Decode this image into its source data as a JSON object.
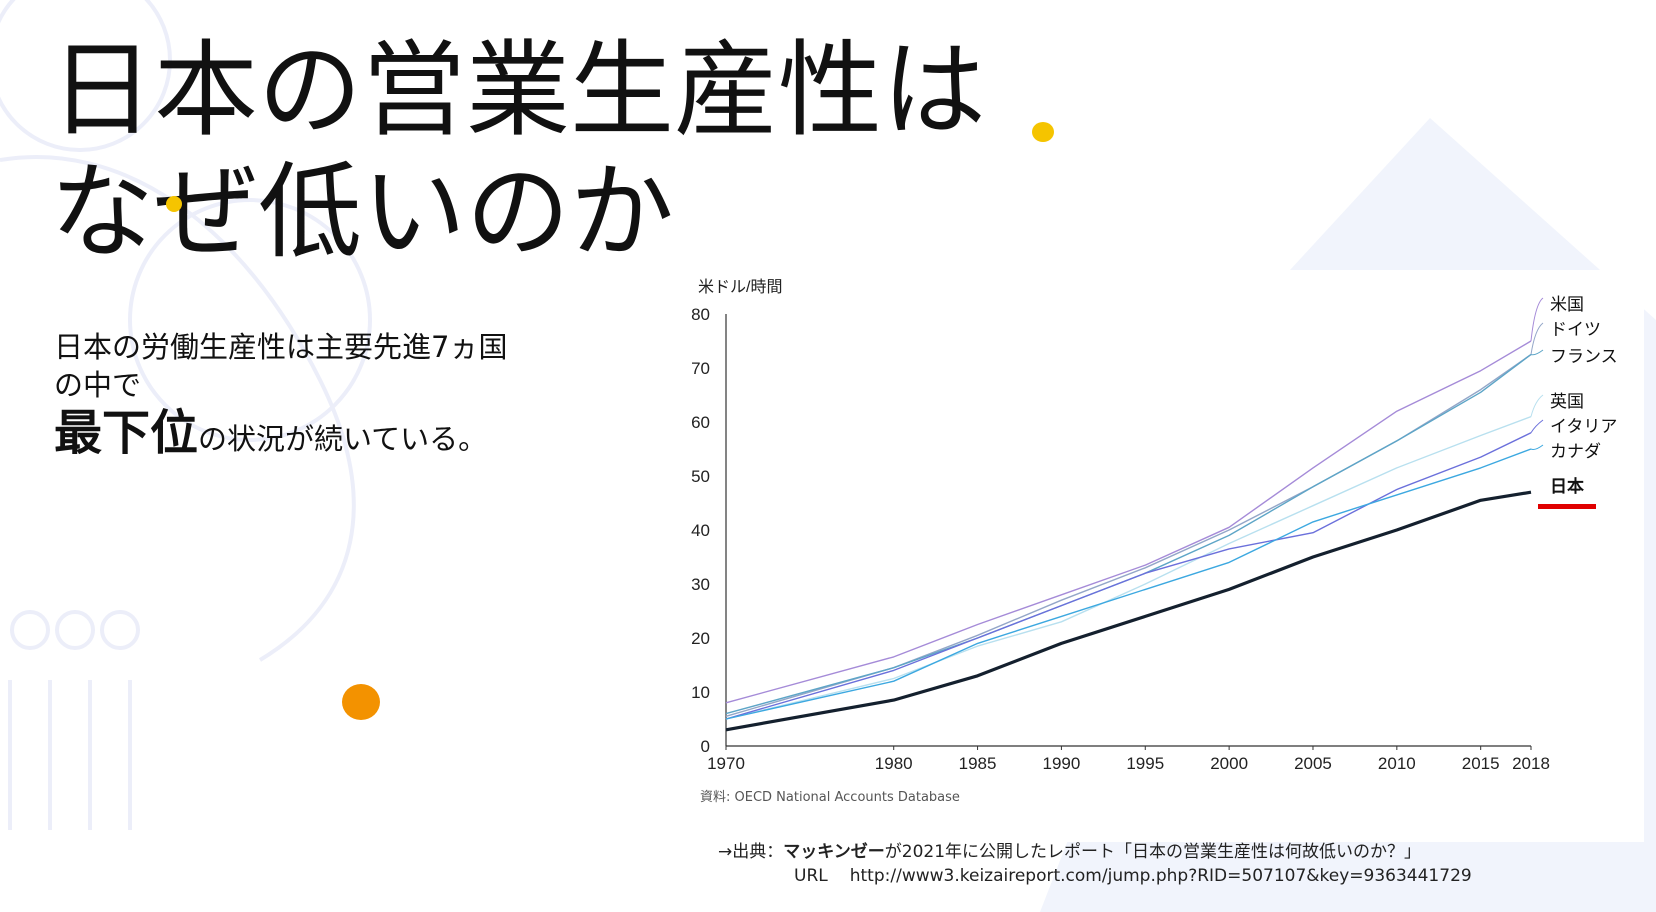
{
  "title": {
    "line1": "日本の営業生産性は",
    "line2": "なぜ低いのか"
  },
  "body": {
    "line1": "日本の労働生産性は主要先進7ヵ国",
    "line2": "の中で",
    "emphasis": "最下位",
    "rest": "の状況が続いている。"
  },
  "colors": {
    "accent_yellow": "#f5c400",
    "accent_orange": "#f39200",
    "japan_marker": "#e00000"
  },
  "chart_data": {
    "type": "line",
    "ylabel": "米ドル/時間",
    "ylim": [
      0,
      80
    ],
    "y_ticks": [
      "0",
      "10",
      "20",
      "30",
      "40",
      "50",
      "60",
      "70",
      "80"
    ],
    "x_ticks": [
      "1970",
      "1980",
      "1985",
      "1990",
      "1995",
      "2000",
      "2005",
      "2010",
      "2015",
      "2018"
    ],
    "x": [
      1970,
      1980,
      1985,
      1990,
      1995,
      2000,
      2005,
      2010,
      2015,
      2018
    ],
    "legend_placement": "right",
    "grid": false,
    "series": [
      {
        "name": "米国",
        "color": "#a58bd8",
        "values": [
          8,
          16.5,
          22.5,
          28,
          33.5,
          40.5,
          51.5,
          62,
          69.5,
          75
        ]
      },
      {
        "name": "ドイツ",
        "color": "#93a6c8",
        "values": [
          5.5,
          14.5,
          20.5,
          27,
          33,
          40,
          48,
          56.5,
          66,
          72.5
        ]
      },
      {
        "name": "フランス",
        "color": "#5da5c7",
        "values": [
          6,
          14.5,
          20,
          26,
          32,
          39,
          48,
          56.5,
          65.5,
          72.5
        ]
      },
      {
        "name": "英国",
        "color": "#b8e0ef",
        "values": [
          5,
          12.5,
          18.5,
          23,
          30,
          37.5,
          44.5,
          51.5,
          57.5,
          61
        ]
      },
      {
        "name": "イタリア",
        "color": "#6b70db",
        "values": [
          5,
          14,
          20,
          26,
          32,
          36.5,
          39.5,
          47.5,
          53.5,
          58
        ]
      },
      {
        "name": "カナダ",
        "color": "#3ca8e0",
        "values": [
          5,
          12,
          19,
          24,
          29,
          34,
          41.5,
          46.5,
          51.5,
          55
        ]
      },
      {
        "name": "日本",
        "color": "#14202e",
        "values": [
          3,
          8.5,
          13,
          19,
          24,
          29,
          35,
          40,
          45.5,
          47
        ]
      }
    ],
    "source": "資料: OECD National Accounts Database"
  },
  "footnote": {
    "prefix": "→出典：",
    "brand": "マッキンゼー",
    "text": "が2021年に公開したレポート「日本の営業生産性は何故低いのか？」",
    "url_label": "URL",
    "url": "http://www3.keizaireport.com/jump.php?RID=507107&key=9363441729"
  }
}
